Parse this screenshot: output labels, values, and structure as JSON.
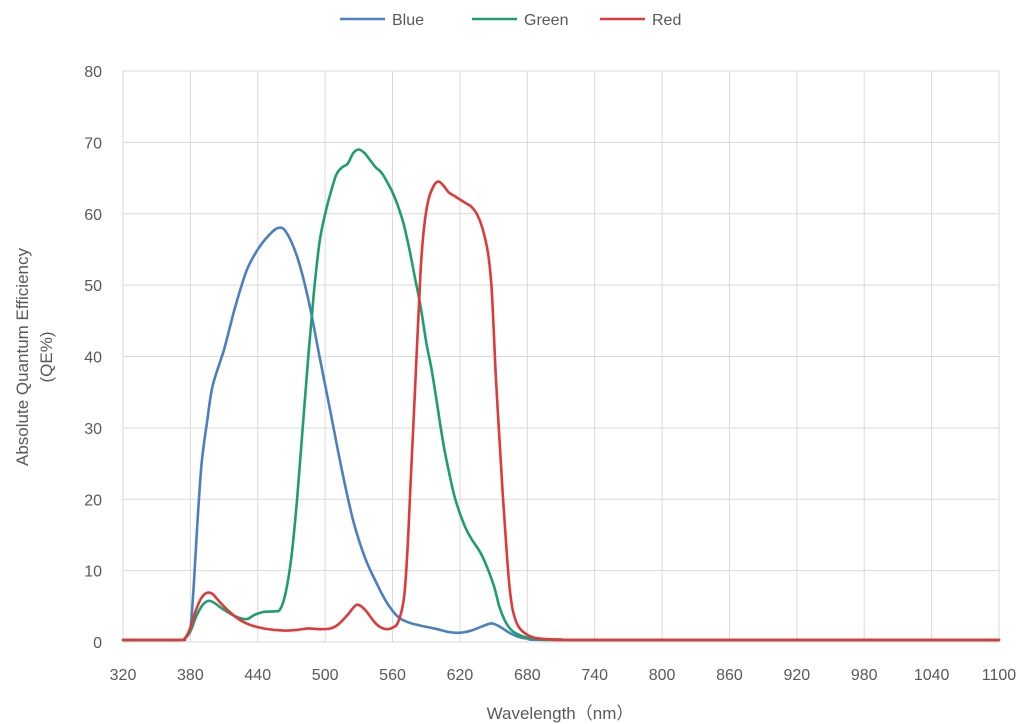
{
  "chart_data": {
    "type": "line",
    "title": "",
    "xlabel": "Wavelength（nm）",
    "ylabel_line1": "Absolute Quantum Efficiency",
    "ylabel_line2": "(QE%)",
    "xlim": [
      320,
      1100
    ],
    "ylim": [
      0,
      80
    ],
    "xticks": [
      320,
      380,
      440,
      500,
      560,
      620,
      680,
      740,
      800,
      860,
      920,
      980,
      1040,
      1100
    ],
    "yticks": [
      0,
      10,
      20,
      30,
      40,
      50,
      60,
      70,
      80
    ],
    "grid": true,
    "legend_position": "top-center",
    "series": [
      {
        "name": "Blue",
        "color": "#4a7fc1",
        "points": [
          [
            320,
            0.3
          ],
          [
            370,
            0.3
          ],
          [
            375,
            0.5
          ],
          [
            380,
            2
          ],
          [
            383,
            8
          ],
          [
            386,
            16
          ],
          [
            390,
            25
          ],
          [
            395,
            31
          ],
          [
            400,
            36
          ],
          [
            410,
            41
          ],
          [
            420,
            47
          ],
          [
            430,
            52
          ],
          [
            440,
            55
          ],
          [
            450,
            57
          ],
          [
            458,
            58
          ],
          [
            465,
            57.5
          ],
          [
            475,
            54
          ],
          [
            485,
            48
          ],
          [
            495,
            40
          ],
          [
            505,
            32
          ],
          [
            515,
            24
          ],
          [
            525,
            17
          ],
          [
            535,
            12
          ],
          [
            545,
            8.5
          ],
          [
            555,
            5.5
          ],
          [
            565,
            3.5
          ],
          [
            575,
            2.7
          ],
          [
            585,
            2.3
          ],
          [
            600,
            1.8
          ],
          [
            610,
            1.4
          ],
          [
            620,
            1.3
          ],
          [
            630,
            1.6
          ],
          [
            640,
            2.2
          ],
          [
            648,
            2.6
          ],
          [
            655,
            2.2
          ],
          [
            665,
            1.2
          ],
          [
            675,
            0.6
          ],
          [
            690,
            0.4
          ],
          [
            720,
            0.3
          ],
          [
            1100,
            0.3
          ]
        ]
      },
      {
        "name": "Green",
        "color": "#1e9e6e",
        "points": [
          [
            320,
            0.3
          ],
          [
            370,
            0.3
          ],
          [
            375,
            0.5
          ],
          [
            380,
            1.5
          ],
          [
            385,
            3.5
          ],
          [
            390,
            5
          ],
          [
            395,
            5.7
          ],
          [
            400,
            5.6
          ],
          [
            410,
            4.5
          ],
          [
            420,
            3.6
          ],
          [
            430,
            3.2
          ],
          [
            437,
            3.8
          ],
          [
            445,
            4.2
          ],
          [
            455,
            4.3
          ],
          [
            460,
            4.6
          ],
          [
            465,
            7
          ],
          [
            470,
            12
          ],
          [
            475,
            20
          ],
          [
            480,
            30
          ],
          [
            485,
            40
          ],
          [
            490,
            49
          ],
          [
            495,
            56
          ],
          [
            500,
            60
          ],
          [
            505,
            63
          ],
          [
            510,
            65.5
          ],
          [
            515,
            66.5
          ],
          [
            520,
            67
          ],
          [
            525,
            68.5
          ],
          [
            530,
            69
          ],
          [
            535,
            68.5
          ],
          [
            540,
            67.5
          ],
          [
            545,
            66.5
          ],
          [
            550,
            65.8
          ],
          [
            555,
            64.5
          ],
          [
            560,
            63
          ],
          [
            565,
            61
          ],
          [
            570,
            58.5
          ],
          [
            575,
            55
          ],
          [
            580,
            51
          ],
          [
            585,
            47
          ],
          [
            590,
            42
          ],
          [
            595,
            38
          ],
          [
            600,
            33
          ],
          [
            605,
            28
          ],
          [
            610,
            24
          ],
          [
            615,
            20.5
          ],
          [
            620,
            18
          ],
          [
            625,
            16
          ],
          [
            630,
            14.5
          ],
          [
            640,
            12
          ],
          [
            650,
            8
          ],
          [
            655,
            5
          ],
          [
            660,
            3
          ],
          [
            665,
            1.8
          ],
          [
            670,
            1.2
          ],
          [
            680,
            0.6
          ],
          [
            700,
            0.35
          ],
          [
            730,
            0.3
          ],
          [
            1100,
            0.3
          ]
        ]
      },
      {
        "name": "Red",
        "color": "#e0393a",
        "points": [
          [
            320,
            0.3
          ],
          [
            370,
            0.3
          ],
          [
            375,
            0.5
          ],
          [
            380,
            2
          ],
          [
            385,
            4.5
          ],
          [
            390,
            6.2
          ],
          [
            395,
            6.9
          ],
          [
            400,
            6.7
          ],
          [
            405,
            5.8
          ],
          [
            415,
            4.2
          ],
          [
            425,
            3
          ],
          [
            435,
            2.3
          ],
          [
            445,
            1.9
          ],
          [
            455,
            1.7
          ],
          [
            465,
            1.6
          ],
          [
            475,
            1.7
          ],
          [
            485,
            1.9
          ],
          [
            495,
            1.8
          ],
          [
            505,
            1.9
          ],
          [
            512,
            2.5
          ],
          [
            520,
            3.8
          ],
          [
            528,
            5.2
          ],
          [
            535,
            4.6
          ],
          [
            540,
            3.6
          ],
          [
            545,
            2.6
          ],
          [
            550,
            2
          ],
          [
            555,
            1.8
          ],
          [
            560,
            2
          ],
          [
            565,
            2.8
          ],
          [
            570,
            6
          ],
          [
            573,
            12
          ],
          [
            576,
            22
          ],
          [
            579,
            32
          ],
          [
            582,
            42
          ],
          [
            585,
            52
          ],
          [
            588,
            58
          ],
          [
            592,
            62
          ],
          [
            597,
            64
          ],
          [
            601,
            64.5
          ],
          [
            605,
            64
          ],
          [
            610,
            63
          ],
          [
            615,
            62.5
          ],
          [
            620,
            62
          ],
          [
            625,
            61.5
          ],
          [
            630,
            61
          ],
          [
            635,
            60
          ],
          [
            640,
            58
          ],
          [
            645,
            54.5
          ],
          [
            648,
            50
          ],
          [
            650,
            44
          ],
          [
            652,
            37
          ],
          [
            655,
            29
          ],
          [
            658,
            21
          ],
          [
            661,
            14
          ],
          [
            664,
            8
          ],
          [
            667,
            4.5
          ],
          [
            672,
            2.2
          ],
          [
            680,
            1
          ],
          [
            690,
            0.5
          ],
          [
            710,
            0.35
          ],
          [
            740,
            0.3
          ],
          [
            1100,
            0.3
          ]
        ]
      }
    ]
  }
}
